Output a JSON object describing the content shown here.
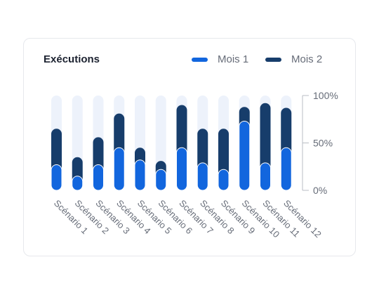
{
  "card": {
    "title": "Exécutions"
  },
  "colors": {
    "mois1": "#1266de",
    "mois2": "#173d6b",
    "track": "#edf2fb",
    "axis": "#b9bdc4"
  },
  "chart_data": {
    "type": "bar",
    "stacked": true,
    "title": "Exécutions",
    "categories": [
      "Scénario 1",
      "Scénario 2",
      "Scénario 3",
      "Scénario 4",
      "Scénario 5",
      "Scénario 6",
      "Scénario 7",
      "Scénario 8",
      "Scénario 9",
      "Scénario 10",
      "Scénario 11",
      "Scénario 12"
    ],
    "series": [
      {
        "name": "Mois 1",
        "values": [
          27,
          15,
          27,
          45,
          32,
          22,
          45,
          29,
          22,
          73,
          29,
          45
        ]
      },
      {
        "name": "Mois 2",
        "values": [
          38,
          20,
          29,
          36,
          13,
          9,
          45,
          36,
          43,
          15,
          63,
          42
        ]
      }
    ],
    "ylim": [
      0,
      100
    ],
    "yticks": [
      "0%",
      "50%",
      "100%"
    ],
    "y_axis_side": "right",
    "legend_position": "top-right",
    "grid": false
  }
}
